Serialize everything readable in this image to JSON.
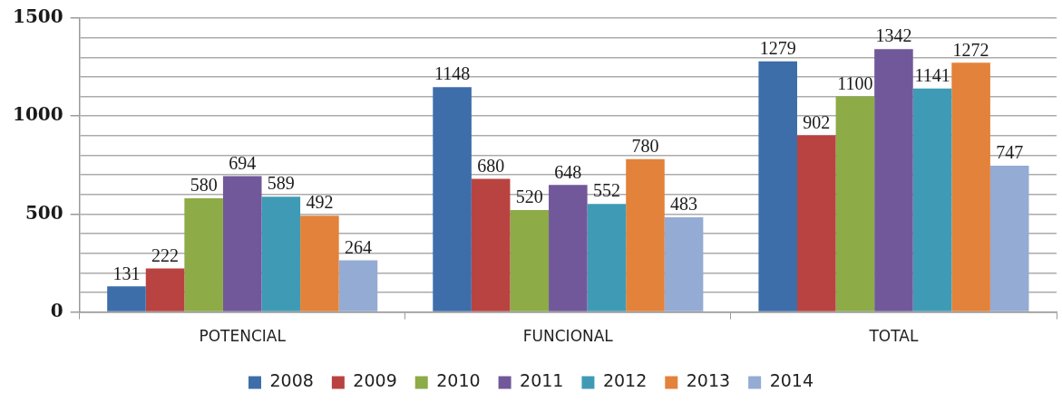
{
  "chart_data": {
    "type": "bar",
    "categories": [
      "POTENCIAL",
      "FUNCIONAL",
      "TOTAL"
    ],
    "series": [
      {
        "name": "2008",
        "color": "#3d6eaa",
        "values": [
          131,
          1148,
          1279
        ]
      },
      {
        "name": "2009",
        "color": "#b94340",
        "values": [
          222,
          680,
          902
        ]
      },
      {
        "name": "2010",
        "color": "#8dab46",
        "values": [
          580,
          520,
          1100
        ]
      },
      {
        "name": "2011",
        "color": "#71589a",
        "values": [
          694,
          648,
          1342
        ]
      },
      {
        "name": "2012",
        "color": "#3f9bb5",
        "values": [
          589,
          552,
          1141
        ]
      },
      {
        "name": "2013",
        "color": "#e3823a",
        "values": [
          492,
          780,
          1272
        ]
      },
      {
        "name": "2014",
        "color": "#94abd4",
        "values": [
          264,
          483,
          747
        ]
      }
    ],
    "ylim": [
      0,
      1500
    ],
    "yticks": [
      0,
      {
        "value": 100,
        "label": null
      },
      {
        "value": 200,
        "label": null
      },
      {
        "value": 300,
        "label": null
      },
      {
        "value": 400,
        "label": null
      },
      500,
      {
        "value": 600,
        "label": null
      },
      {
        "value": 700,
        "label": null
      },
      {
        "value": 800,
        "label": null
      },
      {
        "value": 900,
        "label": null
      },
      1000,
      {
        "value": 1100,
        "label": null
      },
      {
        "value": 1200,
        "label": null
      },
      {
        "value": 1300,
        "label": null
      },
      {
        "value": 1400,
        "label": null
      },
      1500
    ],
    "grid": "y",
    "legend": "bottom",
    "data_labels": true
  }
}
